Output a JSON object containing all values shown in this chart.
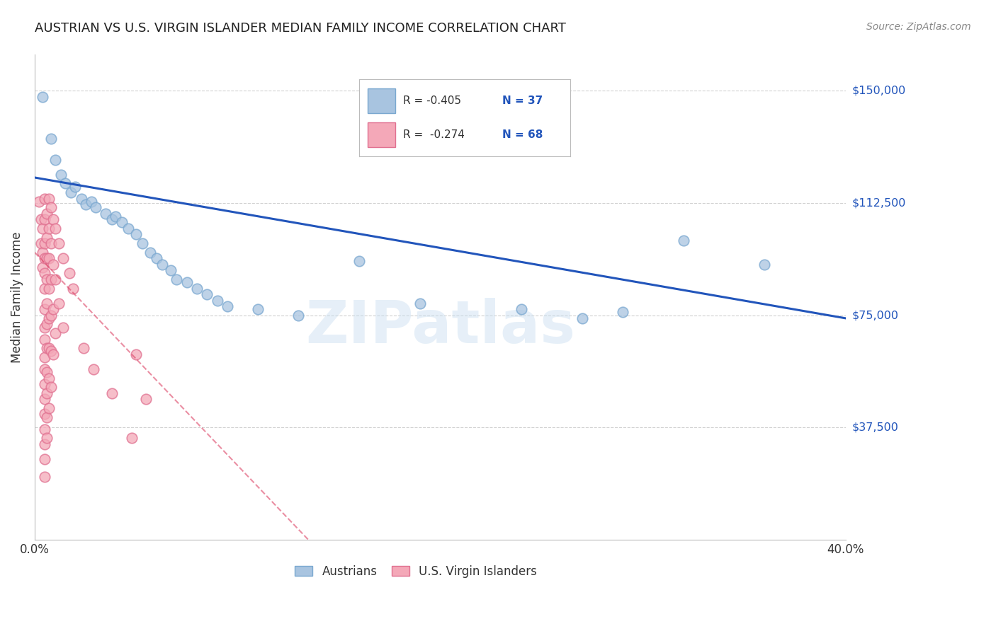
{
  "title": "AUSTRIAN VS U.S. VIRGIN ISLANDER MEDIAN FAMILY INCOME CORRELATION CHART",
  "source": "Source: ZipAtlas.com",
  "ylabel": "Median Family Income",
  "ytick_labels": [
    "$150,000",
    "$112,500",
    "$75,000",
    "$37,500"
  ],
  "ytick_values": [
    150000,
    112500,
    75000,
    37500
  ],
  "ymin": 0,
  "ymax": 162000,
  "xmin": 0.0,
  "xmax": 0.4,
  "watermark": "ZIPatlas",
  "blue_color": "#a8c4e0",
  "blue_edge_color": "#7aa8d0",
  "pink_color": "#f4a8b8",
  "pink_edge_color": "#e07090",
  "blue_line_color": "#2255bb",
  "pink_line_color": "#dd4466",
  "blue_scatter": [
    [
      0.004,
      148000
    ],
    [
      0.008,
      134000
    ],
    [
      0.01,
      127000
    ],
    [
      0.013,
      122000
    ],
    [
      0.015,
      119000
    ],
    [
      0.018,
      116000
    ],
    [
      0.02,
      118000
    ],
    [
      0.023,
      114000
    ],
    [
      0.025,
      112000
    ],
    [
      0.028,
      113000
    ],
    [
      0.03,
      111000
    ],
    [
      0.035,
      109000
    ],
    [
      0.038,
      107000
    ],
    [
      0.04,
      108000
    ],
    [
      0.043,
      106000
    ],
    [
      0.046,
      104000
    ],
    [
      0.05,
      102000
    ],
    [
      0.053,
      99000
    ],
    [
      0.057,
      96000
    ],
    [
      0.06,
      94000
    ],
    [
      0.063,
      92000
    ],
    [
      0.067,
      90000
    ],
    [
      0.07,
      87000
    ],
    [
      0.075,
      86000
    ],
    [
      0.08,
      84000
    ],
    [
      0.085,
      82000
    ],
    [
      0.09,
      80000
    ],
    [
      0.095,
      78000
    ],
    [
      0.11,
      77000
    ],
    [
      0.13,
      75000
    ],
    [
      0.16,
      93000
    ],
    [
      0.19,
      79000
    ],
    [
      0.24,
      77000
    ],
    [
      0.27,
      74000
    ],
    [
      0.29,
      76000
    ],
    [
      0.32,
      100000
    ],
    [
      0.36,
      92000
    ]
  ],
  "pink_scatter": [
    [
      0.002,
      113000
    ],
    [
      0.003,
      107000
    ],
    [
      0.003,
      99000
    ],
    [
      0.004,
      104000
    ],
    [
      0.004,
      96000
    ],
    [
      0.004,
      91000
    ],
    [
      0.005,
      114000
    ],
    [
      0.005,
      107000
    ],
    [
      0.005,
      99000
    ],
    [
      0.005,
      94000
    ],
    [
      0.005,
      89000
    ],
    [
      0.005,
      84000
    ],
    [
      0.005,
      77000
    ],
    [
      0.005,
      71000
    ],
    [
      0.005,
      67000
    ],
    [
      0.005,
      61000
    ],
    [
      0.005,
      57000
    ],
    [
      0.005,
      52000
    ],
    [
      0.005,
      47000
    ],
    [
      0.005,
      42000
    ],
    [
      0.005,
      37000
    ],
    [
      0.005,
      32000
    ],
    [
      0.005,
      27000
    ],
    [
      0.005,
      21000
    ],
    [
      0.006,
      109000
    ],
    [
      0.006,
      101000
    ],
    [
      0.006,
      94000
    ],
    [
      0.006,
      87000
    ],
    [
      0.006,
      79000
    ],
    [
      0.006,
      72000
    ],
    [
      0.006,
      64000
    ],
    [
      0.006,
      56000
    ],
    [
      0.006,
      49000
    ],
    [
      0.006,
      41000
    ],
    [
      0.006,
      34000
    ],
    [
      0.007,
      114000
    ],
    [
      0.007,
      104000
    ],
    [
      0.007,
      94000
    ],
    [
      0.007,
      84000
    ],
    [
      0.007,
      74000
    ],
    [
      0.007,
      64000
    ],
    [
      0.007,
      54000
    ],
    [
      0.007,
      44000
    ],
    [
      0.008,
      111000
    ],
    [
      0.008,
      99000
    ],
    [
      0.008,
      87000
    ],
    [
      0.008,
      75000
    ],
    [
      0.008,
      63000
    ],
    [
      0.008,
      51000
    ],
    [
      0.009,
      107000
    ],
    [
      0.009,
      92000
    ],
    [
      0.009,
      77000
    ],
    [
      0.009,
      62000
    ],
    [
      0.01,
      104000
    ],
    [
      0.01,
      87000
    ],
    [
      0.01,
      69000
    ],
    [
      0.012,
      99000
    ],
    [
      0.012,
      79000
    ],
    [
      0.014,
      94000
    ],
    [
      0.014,
      71000
    ],
    [
      0.017,
      89000
    ],
    [
      0.019,
      84000
    ],
    [
      0.024,
      64000
    ],
    [
      0.029,
      57000
    ],
    [
      0.038,
      49000
    ],
    [
      0.048,
      34000
    ],
    [
      0.05,
      62000
    ],
    [
      0.055,
      47000
    ]
  ],
  "blue_trendline_x": [
    0.0,
    0.4
  ],
  "blue_trendline_y": [
    121000,
    74000
  ],
  "pink_trendline_x": [
    0.0,
    0.135
  ],
  "pink_trendline_y": [
    96000,
    0
  ],
  "background_color": "#ffffff",
  "grid_color": "#cccccc",
  "title_color": "#222222",
  "axis_color": "#333333",
  "ytick_color": "#2255bb",
  "xtick_color": "#333333",
  "legend_blue_text": "R = -0.405   N = 37",
  "legend_pink_text": "R =  -0.274   N = 68"
}
